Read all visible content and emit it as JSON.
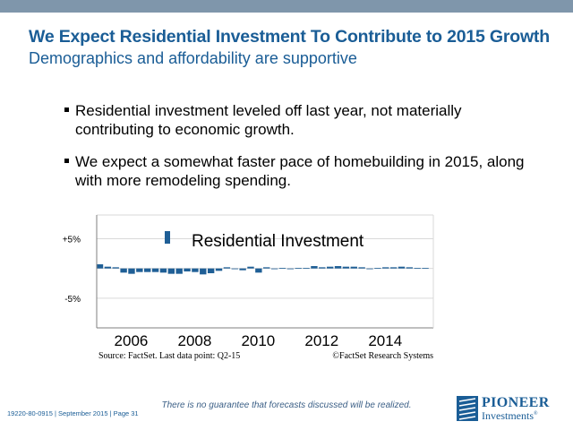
{
  "slide": {
    "title": "We Expect Residential Investment To Contribute to 2015 Growth",
    "subtitle": "Demographics and affordability are supportive",
    "bullets": [
      "Residential investment leveled off last year, not materially contributing to economic growth.",
      "We expect a somewhat faster pace of homebuilding in 2015, along with more remodeling spending."
    ]
  },
  "footer": {
    "doc_id": "19220-80-0915",
    "date": "September 2015",
    "page": "Page 31",
    "disclaimer": "There is no guarantee that forecasts discussed will be realized.",
    "logo_line1": "PIONEER",
    "logo_line2": "Investments",
    "logo_mark": "®"
  },
  "chart_data": {
    "type": "bar",
    "legend": "Residential Investment",
    "legend_position": "top-center",
    "source": "Source: FactSet. Last data point: Q2-15",
    "credit": "©FactSet Research Systems",
    "ylim": [
      -10,
      9
    ],
    "y_ticks": [
      {
        "value": 5,
        "label": "+5%"
      },
      {
        "value": -5,
        "label": "-5%"
      }
    ],
    "x_ticks": [
      {
        "x": 2006,
        "label": "2006"
      },
      {
        "x": 2008,
        "label": "2008"
      },
      {
        "x": 2010,
        "label": "2010"
      },
      {
        "x": 2012,
        "label": "2012"
      },
      {
        "x": 2014,
        "label": "2014"
      }
    ],
    "xlim": [
      2005,
      2015.6
    ],
    "grid": true,
    "bar_color": "#1f5f96",
    "series": [
      {
        "x": [
          2005.0,
          2005.25,
          2005.5,
          2005.75,
          2006.0,
          2006.25,
          2006.5,
          2006.75,
          2007.0,
          2007.25,
          2007.5,
          2007.75,
          2008.0,
          2008.25,
          2008.5,
          2008.75,
          2009.0,
          2009.25,
          2009.5,
          2009.75,
          2010.0,
          2010.25,
          2010.5,
          2010.75,
          2011.0,
          2011.25,
          2011.5,
          2011.75,
          2012.0,
          2012.25,
          2012.5,
          2012.75,
          2013.0,
          2013.25,
          2013.5,
          2013.75,
          2014.0,
          2014.25,
          2014.5,
          2014.75,
          2015.0,
          2015.25
        ],
        "values": [
          0.7,
          0.3,
          0.2,
          -0.7,
          -0.9,
          -0.6,
          -0.6,
          -0.6,
          -0.7,
          -0.9,
          -0.9,
          -0.5,
          -0.6,
          -1.0,
          -0.8,
          -0.4,
          0.2,
          -0.1,
          -0.3,
          0.3,
          -0.7,
          0.2,
          -0.1,
          0.1,
          0.0,
          0.1,
          0.1,
          0.4,
          0.2,
          0.3,
          0.4,
          0.3,
          0.3,
          0.2,
          -0.1,
          0.1,
          0.2,
          0.2,
          0.3,
          0.2,
          0.1,
          0.1
        ]
      }
    ]
  }
}
